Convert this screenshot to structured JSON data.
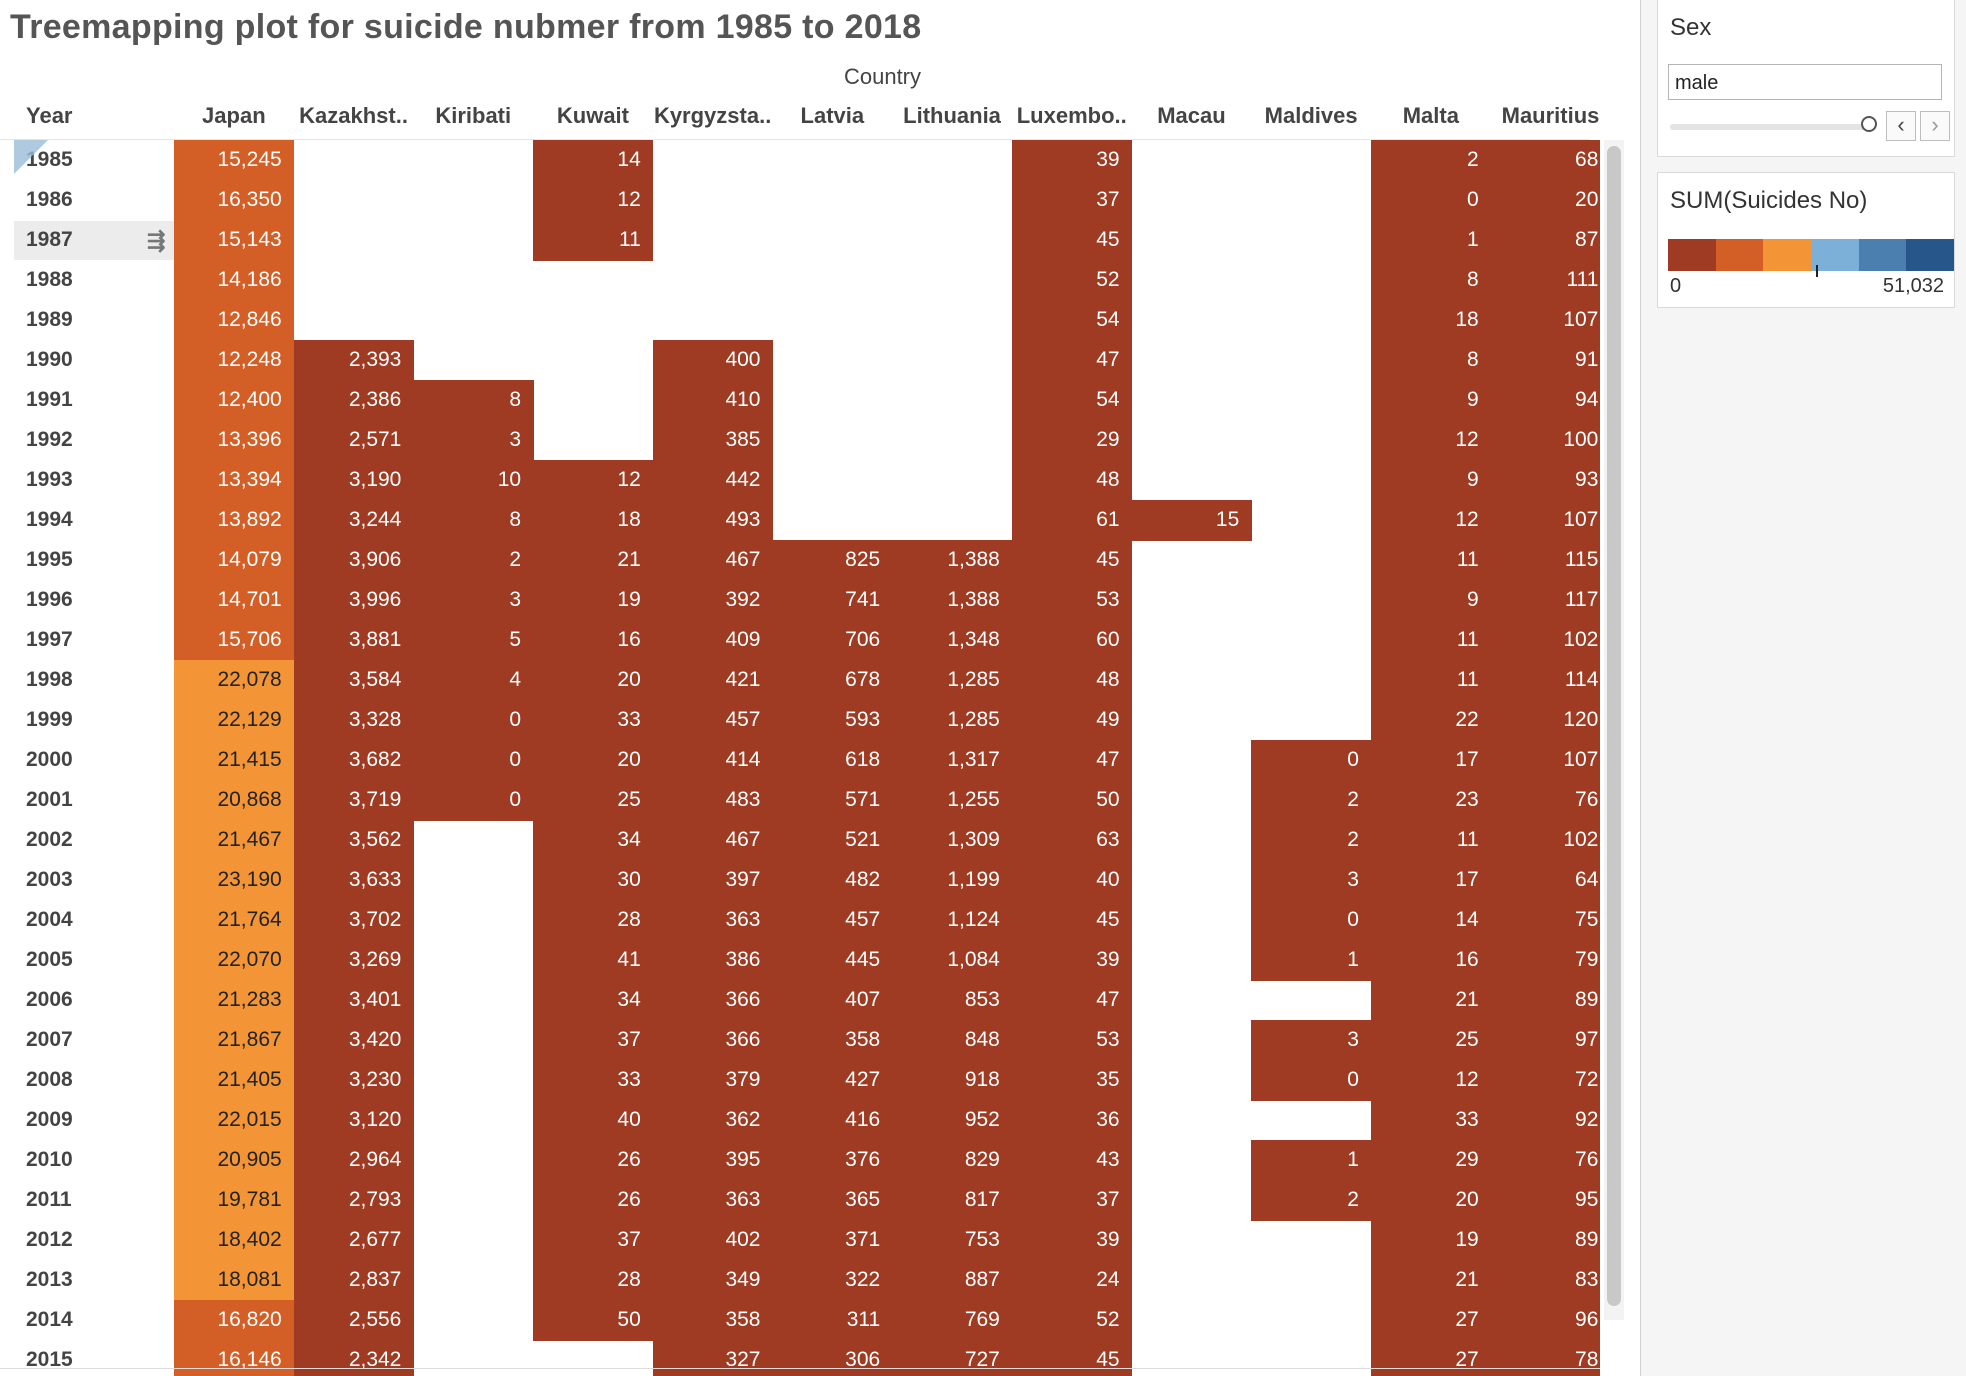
{
  "chart_data": {
    "type": "heatmap",
    "title": "Treemapping plot for suicide nubmer from 1985 to 2018",
    "xlabel": "Country",
    "ylabel": "Year",
    "countries": [
      "Japan",
      "Kazakhst..",
      "Kiribati",
      "Kuwait",
      "Kyrgyzsta..",
      "Latvia",
      "Lithuania",
      "Luxembo..",
      "Macau",
      "Maldives",
      "Malta",
      "Mauritius"
    ],
    "years": [
      "1985",
      "1986",
      "1987",
      "1988",
      "1989",
      "1990",
      "1991",
      "1992",
      "1993",
      "1994",
      "1995",
      "1996",
      "1997",
      "1998",
      "1999",
      "2000",
      "2001",
      "2002",
      "2003",
      "2004",
      "2005",
      "2006",
      "2007",
      "2008",
      "2009",
      "2010",
      "2011",
      "2012",
      "2013",
      "2014",
      "2015"
    ],
    "values": [
      [
        15245,
        null,
        null,
        14,
        null,
        null,
        null,
        39,
        null,
        null,
        2,
        68
      ],
      [
        16350,
        null,
        null,
        12,
        null,
        null,
        null,
        37,
        null,
        null,
        0,
        20
      ],
      [
        15143,
        null,
        null,
        11,
        null,
        null,
        null,
        45,
        null,
        null,
        1,
        87
      ],
      [
        14186,
        null,
        null,
        null,
        null,
        null,
        null,
        52,
        null,
        null,
        8,
        111
      ],
      [
        12846,
        null,
        null,
        null,
        null,
        null,
        null,
        54,
        null,
        null,
        18,
        107
      ],
      [
        12248,
        2393,
        null,
        null,
        400,
        null,
        null,
        47,
        null,
        null,
        8,
        91
      ],
      [
        12400,
        2386,
        8,
        null,
        410,
        null,
        null,
        54,
        null,
        null,
        9,
        94
      ],
      [
        13396,
        2571,
        3,
        null,
        385,
        null,
        null,
        29,
        null,
        null,
        12,
        100
      ],
      [
        13394,
        3190,
        10,
        12,
        442,
        null,
        null,
        48,
        null,
        null,
        9,
        93
      ],
      [
        13892,
        3244,
        8,
        18,
        493,
        null,
        null,
        61,
        15,
        null,
        12,
        107
      ],
      [
        14079,
        3906,
        2,
        21,
        467,
        825,
        1388,
        45,
        null,
        null,
        11,
        115
      ],
      [
        14701,
        3996,
        3,
        19,
        392,
        741,
        1388,
        53,
        null,
        null,
        9,
        117
      ],
      [
        15706,
        3881,
        5,
        16,
        409,
        706,
        1348,
        60,
        null,
        null,
        11,
        102
      ],
      [
        22078,
        3584,
        4,
        20,
        421,
        678,
        1285,
        48,
        null,
        null,
        11,
        114
      ],
      [
        22129,
        3328,
        0,
        33,
        457,
        593,
        1285,
        49,
        null,
        null,
        22,
        120
      ],
      [
        21415,
        3682,
        0,
        20,
        414,
        618,
        1317,
        47,
        null,
        0,
        17,
        107
      ],
      [
        20868,
        3719,
        0,
        25,
        483,
        571,
        1255,
        50,
        null,
        2,
        23,
        76
      ],
      [
        21467,
        3562,
        null,
        34,
        467,
        521,
        1309,
        63,
        null,
        2,
        11,
        102
      ],
      [
        23190,
        3633,
        null,
        30,
        397,
        482,
        1199,
        40,
        null,
        3,
        17,
        64
      ],
      [
        21764,
        3702,
        null,
        28,
        363,
        457,
        1124,
        45,
        null,
        0,
        14,
        75
      ],
      [
        22070,
        3269,
        null,
        41,
        386,
        445,
        1084,
        39,
        null,
        1,
        16,
        79
      ],
      [
        21283,
        3401,
        null,
        34,
        366,
        407,
        853,
        47,
        null,
        null,
        21,
        89
      ],
      [
        21867,
        3420,
        null,
        37,
        366,
        358,
        848,
        53,
        null,
        3,
        25,
        97
      ],
      [
        21405,
        3230,
        null,
        33,
        379,
        427,
        918,
        35,
        null,
        0,
        12,
        72
      ],
      [
        22015,
        3120,
        null,
        40,
        362,
        416,
        952,
        36,
        null,
        null,
        33,
        92
      ],
      [
        20905,
        2964,
        null,
        26,
        395,
        376,
        829,
        43,
        null,
        1,
        29,
        76
      ],
      [
        19781,
        2793,
        null,
        26,
        363,
        365,
        817,
        37,
        null,
        2,
        20,
        95
      ],
      [
        18402,
        2677,
        null,
        37,
        402,
        371,
        753,
        39,
        null,
        null,
        19,
        89
      ],
      [
        18081,
        2837,
        null,
        28,
        349,
        322,
        887,
        24,
        null,
        null,
        21,
        83
      ],
      [
        16820,
        2556,
        null,
        50,
        358,
        311,
        769,
        52,
        null,
        null,
        27,
        96
      ],
      [
        16146,
        2342,
        null,
        null,
        327,
        306,
        727,
        45,
        null,
        null,
        27,
        78
      ]
    ],
    "color_scale": {
      "min": 0,
      "max": 51032,
      "min_label": "0",
      "max_label": "51,032",
      "colors": [
        "#9e3b22",
        "#d45f26",
        "#f39536",
        "#7db0d8",
        "#4a7fb0",
        "#27578a"
      ]
    },
    "grid": false
  },
  "filter": {
    "title": "Sex",
    "selected": "male",
    "prev_label": "‹",
    "next_label": "›"
  },
  "legend": {
    "title": "SUM(Suicides No)"
  }
}
